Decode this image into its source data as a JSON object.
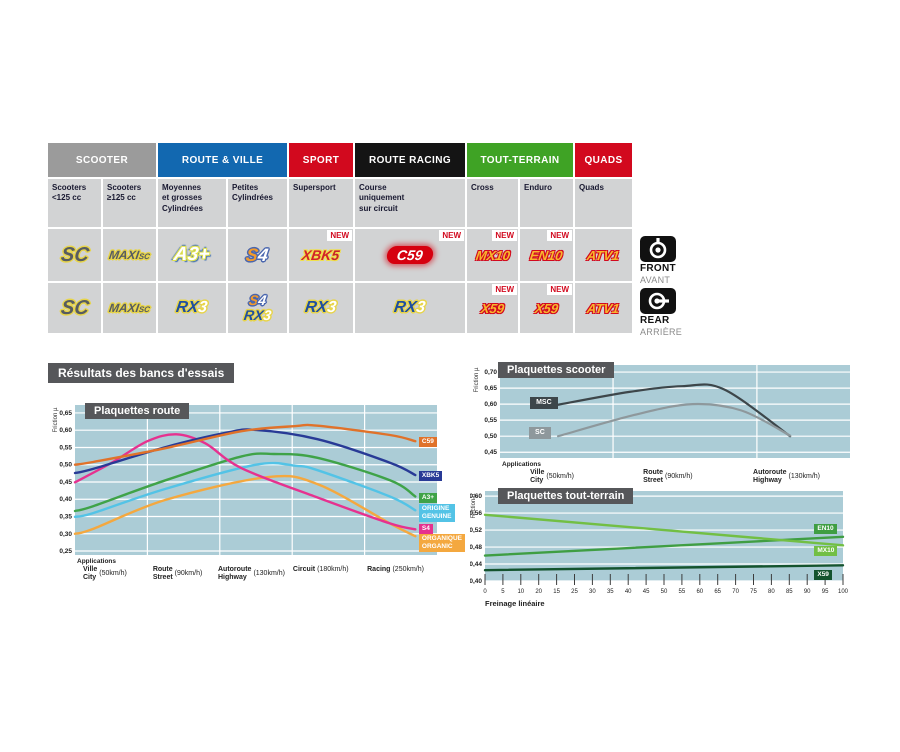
{
  "accent_colors": {
    "red": "#d2091e",
    "blue": "#1268b0",
    "green": "#3fa325",
    "gray": "#9b9b9b",
    "black": "#141414",
    "chart_bg": "#abccd6",
    "title_box": "#56575a"
  },
  "table": {
    "new_label": "NEW",
    "groups": [
      {
        "label": "SCOOTER",
        "bg": "#9b9b9b",
        "cols": 2
      },
      {
        "label": "ROUTE & VILLE",
        "bg": "#1268b0",
        "cols": 2
      },
      {
        "label": "SPORT",
        "bg": "#d2091e",
        "cols": 1
      },
      {
        "label": "ROUTE RACING",
        "bg": "#141414",
        "cols": 1
      },
      {
        "label": "TOUT-TERRAIN",
        "bg": "#3fa325",
        "cols": 2
      },
      {
        "label": "QUADS",
        "bg": "#d2091e",
        "cols": 1
      }
    ],
    "columns": [
      "Scooters\n<125 cc",
      "Scooters\n≥125 cc",
      "Moyennes\net grosses\nCylindrées",
      "Petites\nCylindrées",
      "Supersport",
      "Course\nuniquement\nsur circuit",
      "Cross",
      "Enduro",
      "Quads"
    ],
    "rows": [
      {
        "cells": [
          {
            "logos": [
              {
                "s": "sc",
                "t": "SC"
              }
            ],
            "new": false
          },
          {
            "logos": [
              {
                "s": "maxisc",
                "t": "MAXI",
                "t2": "SC"
              }
            ],
            "new": false
          },
          {
            "logos": [
              {
                "s": "a3",
                "t": "A3+"
              }
            ],
            "new": false
          },
          {
            "logos": [
              {
                "s": "s4",
                "t": "S",
                "t2": "4"
              }
            ],
            "new": false
          },
          {
            "logos": [
              {
                "s": "xbk",
                "t": "XBK",
                "t2": "5"
              }
            ],
            "new": true
          },
          {
            "logos": [
              {
                "s": "c59",
                "t": "C59"
              }
            ],
            "new": true
          },
          {
            "logos": [
              {
                "s": "fire",
                "t": "MX10"
              }
            ],
            "new": true
          },
          {
            "logos": [
              {
                "s": "fire",
                "t": "EN10"
              }
            ],
            "new": true
          },
          {
            "logos": [
              {
                "s": "fire",
                "t": "ATV1"
              }
            ],
            "new": false
          }
        ]
      },
      {
        "cells": [
          {
            "logos": [
              {
                "s": "sc",
                "t": "SC"
              }
            ],
            "new": false
          },
          {
            "logos": [
              {
                "s": "maxisc",
                "t": "MAXI",
                "t2": "SC"
              }
            ],
            "new": false
          },
          {
            "logos": [
              {
                "s": "rx3",
                "t": "RX",
                "t2": "3"
              }
            ],
            "new": false
          },
          {
            "logos": [
              {
                "s": "s4",
                "t": "S",
                "t2": "4"
              },
              {
                "s": "rx3",
                "t": "RX",
                "t2": "3"
              }
            ],
            "new": false
          },
          {
            "logos": [
              {
                "s": "rx3",
                "t": "RX",
                "t2": "3"
              }
            ],
            "new": false
          },
          {
            "logos": [
              {
                "s": "rx3",
                "t": "RX",
                "t2": "3"
              }
            ],
            "new": false
          },
          {
            "logos": [
              {
                "s": "fire",
                "t": "X59"
              }
            ],
            "new": true
          },
          {
            "logos": [
              {
                "s": "fire",
                "t": "X59"
              }
            ],
            "new": true
          },
          {
            "logos": [
              {
                "s": "fire",
                "t": "ATV1"
              }
            ],
            "new": false
          }
        ]
      }
    ]
  },
  "front": {
    "label": "FRONT",
    "sub": "AVANT"
  },
  "rear": {
    "label": "REAR",
    "sub": "ARRIÈRE"
  },
  "results_title": "Résultats des bancs d'essais",
  "chart_data": [
    {
      "id": "route",
      "type": "line",
      "title": "Plaquettes route",
      "ylabel": "Friction µ",
      "caption": "Applications",
      "ylim": [
        0.2385,
        0.673
      ],
      "grid": true,
      "legend_position": "right-tags",
      "yticks": [
        [
          0.65,
          "0,65"
        ],
        [
          0.6,
          "0,60"
        ],
        [
          0.55,
          "0,55"
        ],
        [
          0.5,
          "0,50"
        ],
        [
          0.45,
          "0,45"
        ],
        [
          0.4,
          "0,40"
        ],
        [
          0.35,
          "0,35"
        ],
        [
          0.3,
          "0,30"
        ],
        [
          0.25,
          "0,25"
        ]
      ],
      "vgrid": [
        0.2,
        0.4,
        0.6,
        0.8
      ],
      "xcats": [
        {
          "name": [
            "Ville",
            "City"
          ],
          "speed": "(50km/h)",
          "f": 0.022
        },
        {
          "name": [
            "Route",
            "Street"
          ],
          "speed": "(90km/h)",
          "f": 0.215
        },
        {
          "name": [
            "Autoroute",
            "Highway"
          ],
          "speed": "(130km/h)",
          "f": 0.395
        },
        {
          "name": [
            "Circuit"
          ],
          "speed": "(180km/h)",
          "f": 0.602
        },
        {
          "name": [
            "Racing"
          ],
          "speed": "(250km/h)",
          "f": 0.807
        }
      ],
      "series": [
        {
          "name": "ORGANIQUE ORGANIC",
          "color": "#f4a83f",
          "label": "ORGANIQUE\nORGANIC",
          "label_y": 0.272,
          "points": [
            [
              0,
              0.3
            ],
            [
              0.05,
              0.314
            ],
            [
              0.25,
              0.398
            ],
            [
              0.53,
              0.464
            ],
            [
              0.67,
              0.444
            ],
            [
              0.87,
              0.33
            ],
            [
              0.94,
              0.293
            ]
          ]
        },
        {
          "name": "ORIGINE GENUINE",
          "color": "#53c3e6",
          "label": "ORIGINE\nGENUINE",
          "label_y": 0.36,
          "points": [
            [
              0,
              0.349
            ],
            [
              0.05,
              0.36
            ],
            [
              0.25,
              0.43
            ],
            [
              0.5,
              0.5
            ],
            [
              0.61,
              0.497
            ],
            [
              0.67,
              0.484
            ],
            [
              0.87,
              0.408
            ],
            [
              0.94,
              0.368
            ]
          ]
        },
        {
          "name": "A3+",
          "color": "#3fa348",
          "label": "A3+",
          "label_y": 0.404,
          "points": [
            [
              0,
              0.366
            ],
            [
              0.05,
              0.38
            ],
            [
              0.25,
              0.455
            ],
            [
              0.46,
              0.524
            ],
            [
              0.55,
              0.531
            ],
            [
              0.67,
              0.52
            ],
            [
              0.87,
              0.455
            ],
            [
              0.94,
              0.408
            ]
          ]
        },
        {
          "name": "S4",
          "color": "#e6318f",
          "label": "S4",
          "label_y": 0.314,
          "points": [
            [
              0,
              0.449
            ],
            [
              0.1,
              0.505
            ],
            [
              0.2,
              0.568
            ],
            [
              0.28,
              0.588
            ],
            [
              0.36,
              0.562
            ],
            [
              0.46,
              0.49
            ],
            [
              0.67,
              0.405
            ],
            [
              0.87,
              0.33
            ],
            [
              0.94,
              0.313
            ]
          ]
        },
        {
          "name": "XBK5",
          "color": "#283a96",
          "label": "XBK5",
          "label_y": 0.467,
          "points": [
            [
              0,
              0.476
            ],
            [
              0.05,
              0.488
            ],
            [
              0.25,
              0.551
            ],
            [
              0.42,
              0.593
            ],
            [
              0.5,
              0.601
            ],
            [
              0.67,
              0.574
            ],
            [
              0.87,
              0.506
            ],
            [
              0.94,
              0.47
            ]
          ]
        },
        {
          "name": "C59",
          "color": "#e0722a",
          "label": "C59",
          "label_y": 0.566,
          "points": [
            [
              0,
              0.5
            ],
            [
              0.05,
              0.508
            ],
            [
              0.25,
              0.548
            ],
            [
              0.46,
              0.597
            ],
            [
              0.61,
              0.612
            ],
            [
              0.67,
              0.613
            ],
            [
              0.87,
              0.586
            ],
            [
              0.94,
              0.568
            ]
          ]
        }
      ]
    },
    {
      "id": "scooter",
      "type": "line",
      "title": "Plaquettes scooter",
      "ylabel": "Friction µ",
      "caption": "Applications",
      "ylim": [
        0.432,
        0.722
      ],
      "grid": true,
      "legend_position": "inline-boxes",
      "yticks": [
        [
          0.7,
          "0,70"
        ],
        [
          0.65,
          "0,65"
        ],
        [
          0.6,
          "0,60"
        ],
        [
          0.55,
          "0,55"
        ],
        [
          0.5,
          "0,50"
        ],
        [
          0.45,
          "0,45"
        ]
      ],
      "vgrid": [
        0.323,
        0.734
      ],
      "xcats": [
        {
          "name": [
            "Ville",
            "City"
          ],
          "speed": "(50km/h)",
          "f": 0.086
        },
        {
          "name": [
            "Route",
            "Street"
          ],
          "speed": "(90km/h)",
          "f": 0.409
        },
        {
          "name": [
            "Autoroute",
            "Highway"
          ],
          "speed": "(130km/h)",
          "f": 0.723
        }
      ],
      "series": [
        {
          "name": "MSC",
          "color": "#3d464a",
          "label": "MSC",
          "box": {
            "x": 0.086,
            "y": 0.608
          },
          "points": [
            [
              0.166,
              0.598
            ],
            [
              0.37,
              0.638
            ],
            [
              0.52,
              0.656
            ],
            [
              0.64,
              0.646
            ],
            [
              0.829,
              0.5
            ]
          ]
        },
        {
          "name": "SC",
          "color": "#8e989c",
          "label": "SC",
          "box": {
            "x": 0.083,
            "y": 0.514
          },
          "points": [
            [
              0.166,
              0.5
            ],
            [
              0.39,
              0.568
            ],
            [
              0.55,
              0.6
            ],
            [
              0.69,
              0.58
            ],
            [
              0.829,
              0.502
            ]
          ]
        }
      ]
    },
    {
      "id": "terrain",
      "type": "line",
      "title": "Plaquettes tout-terrain",
      "ylabel": "Friction µ",
      "xlabel": "Freinage linéaire",
      "ylim": [
        0.4,
        0.612
      ],
      "grid": true,
      "legend_position": "right-tags",
      "yticks": [
        [
          0.6,
          "0,60"
        ],
        [
          0.56,
          "0,56"
        ],
        [
          0.52,
          "0,52"
        ],
        [
          0.48,
          "0,48"
        ],
        [
          0.44,
          "0,44"
        ],
        [
          0.4,
          "0,40"
        ]
      ],
      "xticks": [
        "0",
        "5",
        "10",
        "20",
        "15",
        "25",
        "30",
        "35",
        "40",
        "45",
        "50",
        "55",
        "60",
        "65",
        "70",
        "75",
        "80",
        "85",
        "90",
        "95",
        "100"
      ],
      "series": [
        {
          "name": "EN10",
          "color": "#3f9e43",
          "label": "EN10",
          "label_y": 0.523,
          "points": [
            [
              0,
              0.46
            ],
            [
              1,
              0.504
            ]
          ]
        },
        {
          "name": "MX10",
          "color": "#72bf44",
          "label": "MX10",
          "label_y": 0.47,
          "points": [
            [
              0,
              0.556
            ],
            [
              1,
              0.484
            ]
          ]
        },
        {
          "name": "X59",
          "color": "#14532e",
          "label": "X59",
          "label_y": 0.4135,
          "points": [
            [
              0,
              0.4255
            ],
            [
              1,
              0.437
            ]
          ]
        }
      ]
    }
  ]
}
